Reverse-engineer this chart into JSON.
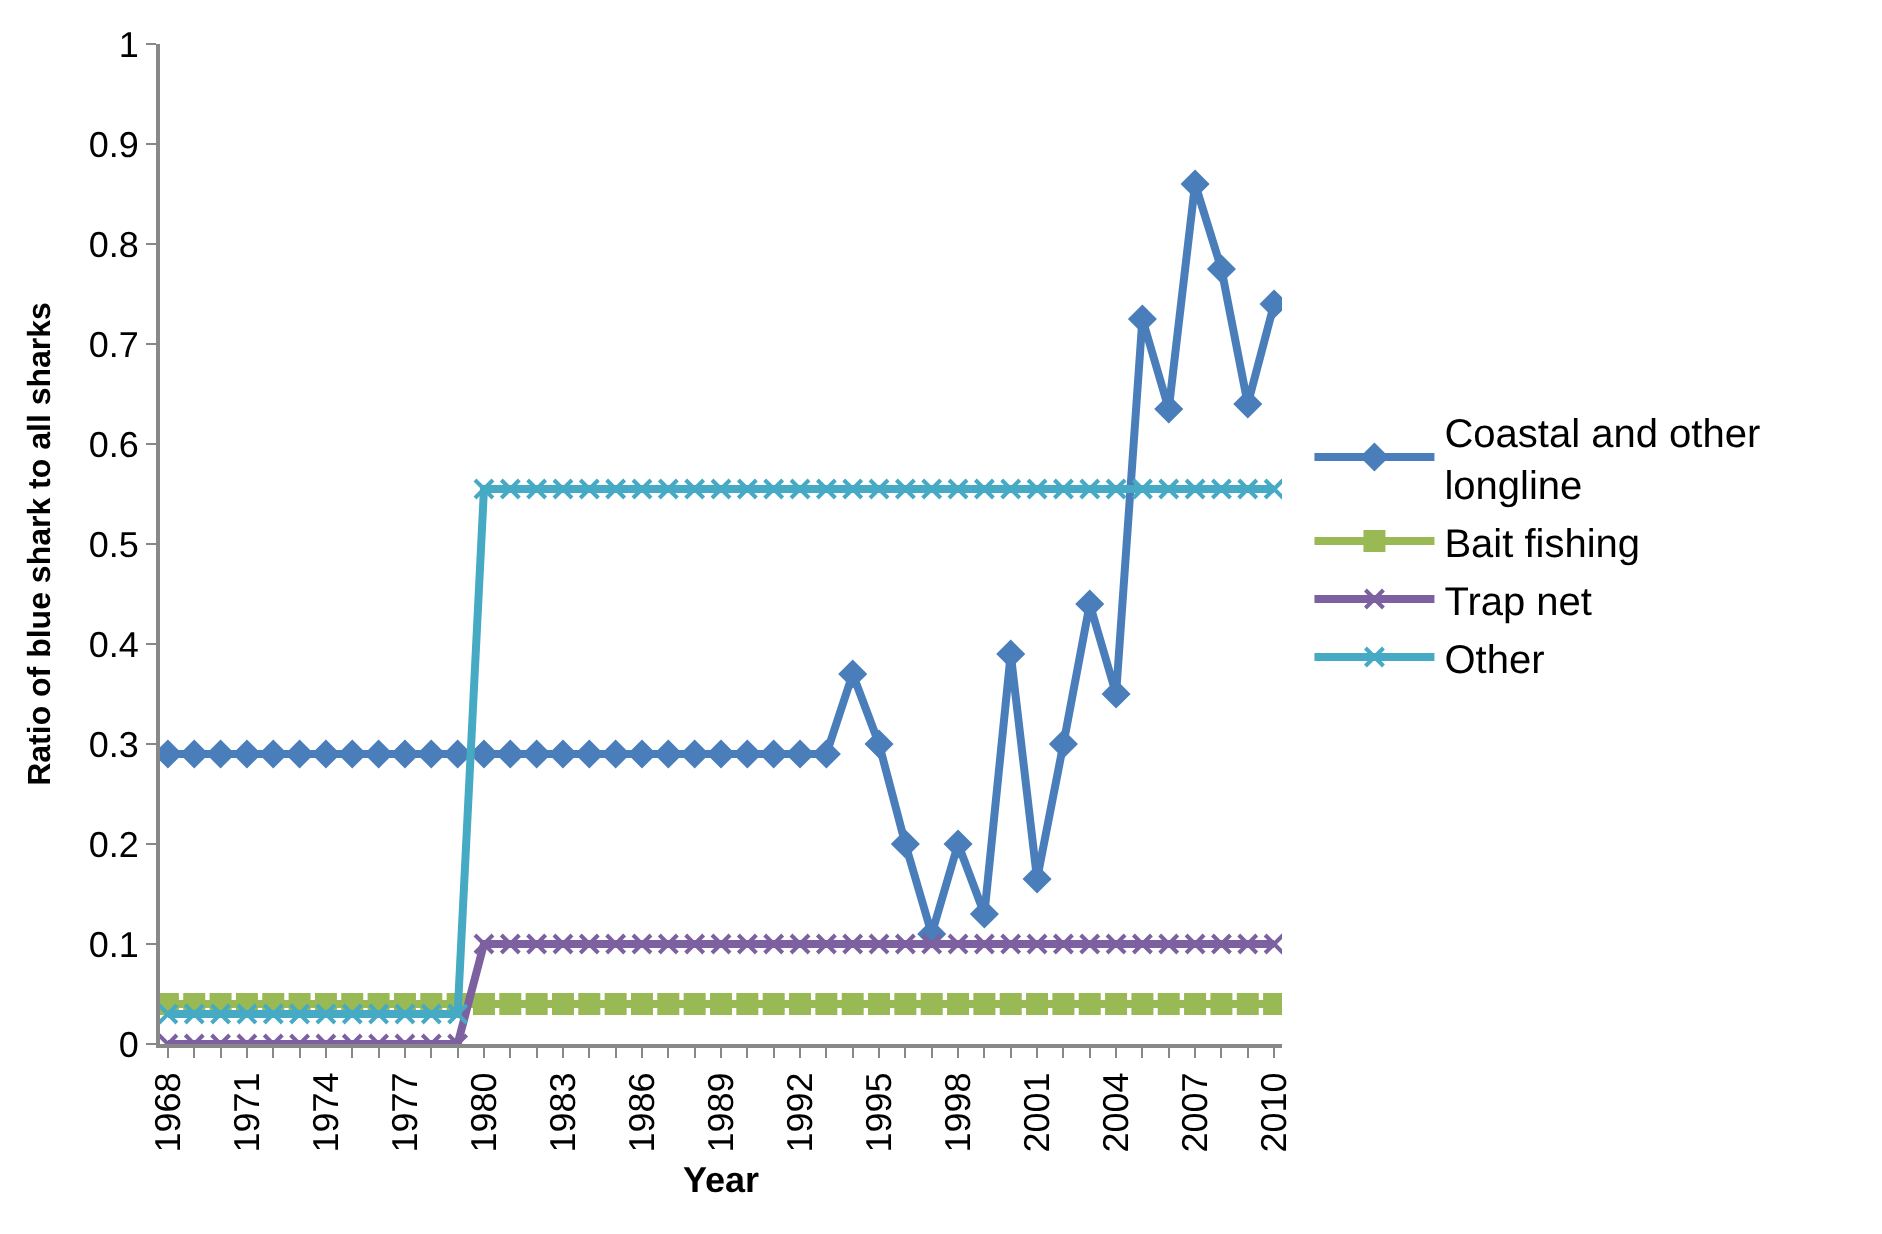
{
  "chart_data": {
    "type": "line",
    "xlabel": "Year",
    "ylabel": "Ratio of blue shark to all sharks",
    "categories": [
      "1968",
      null,
      null,
      "1971",
      null,
      null,
      "1974",
      null,
      null,
      "1977",
      null,
      null,
      "1980",
      null,
      null,
      "1983",
      null,
      null,
      "1986",
      null,
      null,
      "1989",
      null,
      null,
      "1992",
      null,
      null,
      "1995",
      null,
      null,
      "1998",
      null,
      null,
      "2001",
      null,
      null,
      "2004",
      null,
      null,
      "2007",
      null,
      null,
      "2010"
    ],
    "series": [
      {
        "name": "Coastal and other longline",
        "color": "#4a7ebb",
        "marker": "diamond",
        "values": [
          0.29,
          0.29,
          0.29,
          0.29,
          0.29,
          0.29,
          0.29,
          0.29,
          0.29,
          0.29,
          0.29,
          0.29,
          0.29,
          0.29,
          0.29,
          0.29,
          0.29,
          0.29,
          0.29,
          0.29,
          0.29,
          0.29,
          0.29,
          0.29,
          0.29,
          0.29,
          0.37,
          0.3,
          0.2,
          0.11,
          0.2,
          0.13,
          0.39,
          0.165,
          0.3,
          0.44,
          0.35,
          0.725,
          0.635,
          0.86,
          0.775,
          0.64,
          0.74
        ]
      },
      {
        "name": "Bait fishing",
        "color": "#98b954",
        "marker": "square",
        "values": [
          0.04,
          0.04,
          0.04,
          0.04,
          0.04,
          0.04,
          0.04,
          0.04,
          0.04,
          0.04,
          0.04,
          0.04,
          0.04,
          0.04,
          0.04,
          0.04,
          0.04,
          0.04,
          0.04,
          0.04,
          0.04,
          0.04,
          0.04,
          0.04,
          0.04,
          0.04,
          0.04,
          0.04,
          0.04,
          0.04,
          0.04,
          0.04,
          0.04,
          0.04,
          0.04,
          0.04,
          0.04,
          0.04,
          0.04,
          0.04,
          0.04,
          0.04,
          0.04
        ]
      },
      {
        "name": "Trap net",
        "color": "#7d60a0",
        "marker": "cross",
        "values": [
          0,
          0,
          0,
          0,
          0,
          0,
          0,
          0,
          0,
          0,
          0,
          0,
          0.1,
          0.1,
          0.1,
          0.1,
          0.1,
          0.1,
          0.1,
          0.1,
          0.1,
          0.1,
          0.1,
          0.1,
          0.1,
          0.1,
          0.1,
          0.1,
          0.1,
          0.1,
          0.1,
          0.1,
          0.1,
          0.1,
          0.1,
          0.1,
          0.1,
          0.1,
          0.1,
          0.1,
          0.1,
          0.1,
          0.1
        ]
      },
      {
        "name": "Other",
        "color": "#46aac5",
        "marker": "cross",
        "values": [
          0.03,
          0.03,
          0.03,
          0.03,
          0.03,
          0.03,
          0.03,
          0.03,
          0.03,
          0.03,
          0.03,
          0.03,
          0.555,
          0.555,
          0.555,
          0.555,
          0.555,
          0.555,
          0.555,
          0.555,
          0.555,
          0.555,
          0.555,
          0.555,
          0.555,
          0.555,
          0.555,
          0.555,
          0.555,
          0.555,
          0.555,
          0.555,
          0.555,
          0.555,
          0.555,
          0.555,
          0.555,
          0.555,
          0.555,
          0.555,
          0.555,
          0.555,
          0.555
        ]
      }
    ],
    "ylim": [
      0,
      1
    ],
    "yticks": [
      0,
      0.1,
      0.2,
      0.3,
      0.4,
      0.5,
      0.6,
      0.7,
      0.8,
      0.9,
      1
    ],
    "legend": "right",
    "line_style": "solid"
  }
}
